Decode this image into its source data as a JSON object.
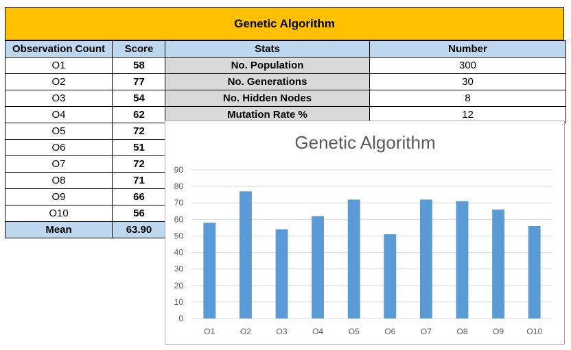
{
  "banner": {
    "title": "Genetic Algorithm"
  },
  "scores": {
    "headers": [
      "Observation Count",
      "Score"
    ],
    "rows": [
      {
        "obs": "O1",
        "score": "58"
      },
      {
        "obs": "O2",
        "score": "77"
      },
      {
        "obs": "O3",
        "score": "54"
      },
      {
        "obs": "O4",
        "score": "62"
      },
      {
        "obs": "O5",
        "score": "72"
      },
      {
        "obs": "O6",
        "score": "51"
      },
      {
        "obs": "O7",
        "score": "72"
      },
      {
        "obs": "O8",
        "score": "71"
      },
      {
        "obs": "O9",
        "score": "66"
      },
      {
        "obs": "O10",
        "score": "56"
      }
    ],
    "mean_label": "Mean",
    "mean_value": "63.90"
  },
  "stats": {
    "headers": [
      "Stats",
      "Number"
    ],
    "rows": [
      {
        "name": "No. Population",
        "value": "300"
      },
      {
        "name": "No. Generations",
        "value": "30"
      },
      {
        "name": "No. Hidden Nodes",
        "value": "8"
      },
      {
        "name": "Mutation Rate %",
        "value": "12"
      }
    ]
  },
  "colors": {
    "banner": "#ffc000",
    "header": "#bdd7ee",
    "stat_label": "#d9d9d9",
    "bar": "#5b9bd5"
  },
  "chart_data": {
    "type": "bar",
    "title": "Genetic Algorithm",
    "categories": [
      "O1",
      "O2",
      "O3",
      "O4",
      "O5",
      "O6",
      "O7",
      "O8",
      "O9",
      "O10"
    ],
    "values": [
      58,
      77,
      54,
      62,
      72,
      51,
      72,
      71,
      66,
      56
    ],
    "xlabel": "",
    "ylabel": "",
    "ylim": [
      0,
      90
    ],
    "yticks": [
      0,
      10,
      20,
      30,
      40,
      50,
      60,
      70,
      80,
      90
    ],
    "grid": true,
    "legend": "none"
  }
}
